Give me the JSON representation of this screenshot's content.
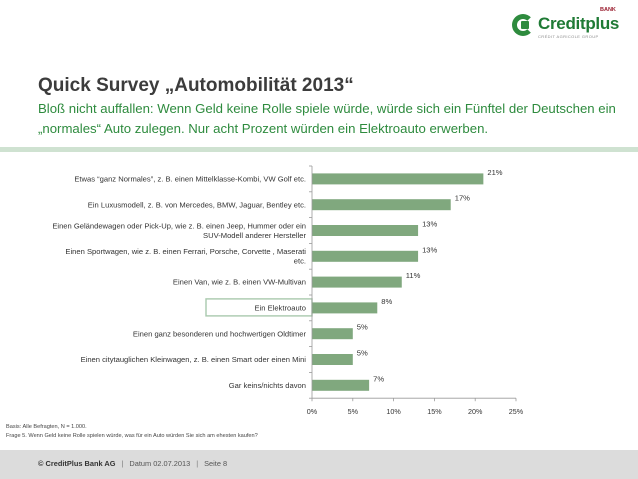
{
  "header": {
    "logo_name": "Creditplus",
    "logo_bank": "BANK",
    "logo_group": "CRÉDIT AGRICOLE GROUP",
    "title": "Quick Survey „Automobilität 2013“",
    "subtitle": "Bloß nicht auffallen: Wenn Geld keine Rolle spiele würde, würde sich ein Fünftel der Deutschen ein „normales“ Auto zulegen. Nur acht Prozent würden ein Elektroauto erwerben."
  },
  "colors": {
    "bar": "#80a87e",
    "accent": "#2e8b3e",
    "highlight_box": "#a9c9ad"
  },
  "chart_data": {
    "type": "bar",
    "orientation": "horizontal",
    "title": "",
    "xlabel": "",
    "ylabel": "",
    "categories": [
      [
        "Etwas “ganz Normales”, z. B. einen Mittelklasse-Kombi, VW Golf etc."
      ],
      [
        "Ein Luxusmodell, z. B. von Mercedes, BMW, Jaguar, Bentley etc."
      ],
      [
        "Einen Geländewagen oder Pick-Up, wie z. B. einen Jeep, Hummer oder ein",
        "SUV-Modell anderer Hersteller"
      ],
      [
        "Einen Sportwagen, wie z. B. einen Ferrari, Porsche, Corvette , Maserati",
        "etc."
      ],
      [
        "Einen Van, wie z. B. einen VW-Multivan"
      ],
      [
        "Ein Elektroauto"
      ],
      [
        "Einen ganz besonderen und hochwertigen Oldtimer"
      ],
      [
        "Einen citytauglichen Kleinwagen, z. B. einen Smart oder einen Mini"
      ],
      [
        "Gar keins/nichts davon"
      ]
    ],
    "values": [
      21,
      17,
      13,
      13,
      11,
      8,
      5,
      5,
      7
    ],
    "value_labels": [
      "21%",
      "17%",
      "13%",
      "13%",
      "11%",
      "8%",
      "5%",
      "5%",
      "7%"
    ],
    "highlighted_category_index": 5,
    "xlim": [
      0,
      25
    ],
    "x_ticks": [
      0,
      5,
      10,
      15,
      20,
      25
    ],
    "x_tick_labels": [
      "0%",
      "5%",
      "10%",
      "15%",
      "20%",
      "25%"
    ],
    "grid": false
  },
  "notes": {
    "basis": "Basis: Alle Befragten, N = 1.000.",
    "question": "Frage 5. Wenn Geld keine Rolle spielen würde, was für ein Auto würden Sie sich am ehesten kaufen?"
  },
  "footer": {
    "company": "© CreditPlus Bank AG",
    "date": "Datum 02.07.2013",
    "page": "Seite 8"
  }
}
